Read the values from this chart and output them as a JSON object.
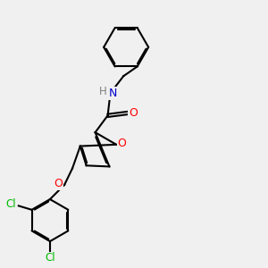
{
  "background_color": "#f0f0f0",
  "atom_colors": {
    "C": "#000000",
    "N": "#0000cc",
    "O": "#ff0000",
    "Cl": "#00bb00",
    "H": "#808080"
  },
  "bond_color": "#000000",
  "bond_width": 1.5,
  "dbo": 0.055,
  "figsize": [
    3.0,
    3.0
  ],
  "dpi": 100
}
